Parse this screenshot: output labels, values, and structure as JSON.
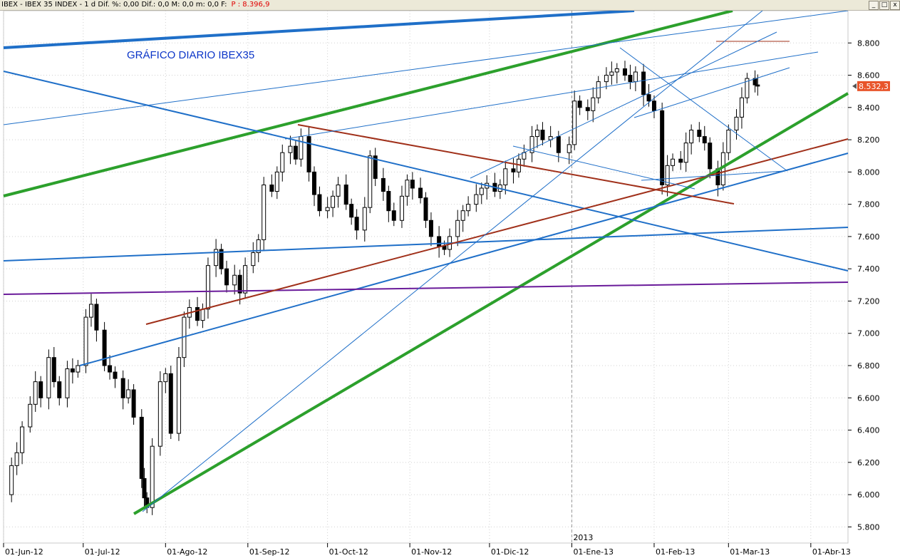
{
  "window": {
    "title": "IBEX - IBEX 35 INDEX - 1 d Dif. %: 0,00  Dif.: 0,0  M: 0,0  m: 0,0  F:",
    "price_label": "P : 8.396,9",
    "buttons": [
      "_",
      "□",
      "x"
    ]
  },
  "chart_data": {
    "type": "candlestick",
    "title": "GRÁFICO DIARIO IBEX35",
    "last_value_badge": "8.532,3",
    "year_marker": "2013",
    "ylim": [
      5700,
      9000
    ],
    "y_ticks": [
      {
        "v": 5800,
        "label": "5.800"
      },
      {
        "v": 6000,
        "label": "6.000"
      },
      {
        "v": 6200,
        "label": "6.200"
      },
      {
        "v": 6400,
        "label": "6.400"
      },
      {
        "v": 6600,
        "label": "6.600"
      },
      {
        "v": 6800,
        "label": "6.800"
      },
      {
        "v": 7000,
        "label": "7.000"
      },
      {
        "v": 7200,
        "label": "7.200"
      },
      {
        "v": 7400,
        "label": "7.400"
      },
      {
        "v": 7600,
        "label": "7.600"
      },
      {
        "v": 7800,
        "label": "7.800"
      },
      {
        "v": 8000,
        "label": "8.000"
      },
      {
        "v": 8200,
        "label": "8.200"
      },
      {
        "v": 8400,
        "label": "8.400"
      },
      {
        "v": 8600,
        "label": "8.600"
      },
      {
        "v": 8800,
        "label": "8.800"
      }
    ],
    "x_start": "2012-06-01",
    "x_end": "2013-04-15",
    "x_ticks": [
      {
        "date": "2012-06-01",
        "label": "01-Jun-12"
      },
      {
        "date": "2012-07-01",
        "label": "01-Jul-12"
      },
      {
        "date": "2012-08-01",
        "label": "01-Ago-12"
      },
      {
        "date": "2012-09-01",
        "label": "01-Sep-12"
      },
      {
        "date": "2012-10-01",
        "label": "01-Oct-12"
      },
      {
        "date": "2012-11-01",
        "label": "01-Nov-12"
      },
      {
        "date": "2012-12-01",
        "label": "01-Dic-12"
      },
      {
        "date": "2013-01-01",
        "label": "01-Ene-13"
      },
      {
        "date": "2013-02-01",
        "label": "01-Feb-13"
      },
      {
        "date": "2013-03-01",
        "label": "01-Mar-13"
      },
      {
        "date": "2013-04-01",
        "label": "01-Abr-13"
      }
    ],
    "series_close": [
      [
        "2012-06-01",
        6000
      ],
      [
        "2012-06-04",
        6180
      ],
      [
        "2012-06-06",
        6260
      ],
      [
        "2012-06-08",
        6420
      ],
      [
        "2012-06-11",
        6560
      ],
      [
        "2012-06-13",
        6700
      ],
      [
        "2012-06-15",
        6600
      ],
      [
        "2012-06-18",
        6850
      ],
      [
        "2012-06-20",
        6700
      ],
      [
        "2012-06-22",
        6600
      ],
      [
        "2012-06-25",
        6780
      ],
      [
        "2012-06-27",
        6760
      ],
      [
        "2012-06-29",
        6800
      ],
      [
        "2012-07-02",
        7100
      ],
      [
        "2012-07-04",
        7180
      ],
      [
        "2012-07-06",
        7020
      ],
      [
        "2012-07-09",
        6800
      ],
      [
        "2012-07-11",
        6760
      ],
      [
        "2012-07-13",
        6720
      ],
      [
        "2012-07-16",
        6600
      ],
      [
        "2012-07-18",
        6650
      ],
      [
        "2012-07-20",
        6480
      ],
      [
        "2012-07-23",
        6100
      ],
      [
        "2012-07-24",
        5980
      ],
      [
        "2012-07-25",
        5920
      ],
      [
        "2012-07-27",
        6300
      ],
      [
        "2012-07-30",
        6700
      ],
      [
        "2012-08-01",
        6750
      ],
      [
        "2012-08-03",
        6380
      ],
      [
        "2012-08-06",
        6850
      ],
      [
        "2012-08-08",
        7100
      ],
      [
        "2012-08-10",
        7160
      ],
      [
        "2012-08-13",
        7080
      ],
      [
        "2012-08-15",
        7150
      ],
      [
        "2012-08-17",
        7420
      ],
      [
        "2012-08-20",
        7520
      ],
      [
        "2012-08-22",
        7400
      ],
      [
        "2012-08-24",
        7300
      ],
      [
        "2012-08-27",
        7360
      ],
      [
        "2012-08-29",
        7250
      ],
      [
        "2012-08-31",
        7420
      ],
      [
        "2012-09-03",
        7500
      ],
      [
        "2012-09-05",
        7580
      ],
      [
        "2012-09-07",
        7920
      ],
      [
        "2012-09-10",
        7880
      ],
      [
        "2012-09-12",
        8000
      ],
      [
        "2012-09-14",
        8120
      ],
      [
        "2012-09-17",
        8160
      ],
      [
        "2012-09-19",
        8080
      ],
      [
        "2012-09-21",
        8220
      ],
      [
        "2012-09-24",
        8000
      ],
      [
        "2012-09-26",
        7860
      ],
      [
        "2012-09-28",
        7760
      ],
      [
        "2012-10-01",
        7780
      ],
      [
        "2012-10-03",
        7850
      ],
      [
        "2012-10-05",
        7920
      ],
      [
        "2012-10-08",
        7800
      ],
      [
        "2012-10-10",
        7720
      ],
      [
        "2012-10-12",
        7640
      ],
      [
        "2012-10-15",
        7780
      ],
      [
        "2012-10-17",
        8100
      ],
      [
        "2012-10-19",
        7960
      ],
      [
        "2012-10-22",
        7880
      ],
      [
        "2012-10-24",
        7760
      ],
      [
        "2012-10-26",
        7700
      ],
      [
        "2012-10-29",
        7850
      ],
      [
        "2012-10-31",
        7950
      ],
      [
        "2012-11-02",
        7900
      ],
      [
        "2012-11-05",
        7840
      ],
      [
        "2012-11-07",
        7700
      ],
      [
        "2012-11-09",
        7600
      ],
      [
        "2012-11-12",
        7540
      ],
      [
        "2012-11-14",
        7520
      ],
      [
        "2012-11-16",
        7600
      ],
      [
        "2012-11-19",
        7700
      ],
      [
        "2012-11-21",
        7760
      ],
      [
        "2012-11-23",
        7800
      ],
      [
        "2012-11-26",
        7860
      ],
      [
        "2012-11-28",
        7900
      ],
      [
        "2012-11-30",
        7930
      ],
      [
        "2012-12-03",
        7880
      ],
      [
        "2012-12-05",
        7920
      ],
      [
        "2012-12-07",
        8020
      ],
      [
        "2012-12-10",
        8000
      ],
      [
        "2012-12-12",
        8080
      ],
      [
        "2012-12-14",
        8120
      ],
      [
        "2012-12-17",
        8220
      ],
      [
        "2012-12-19",
        8260
      ],
      [
        "2012-12-21",
        8200
      ],
      [
        "2012-12-24",
        8220
      ],
      [
        "2012-12-27",
        8120
      ],
      [
        "2012-12-31",
        8170
      ],
      [
        "2013-01-02",
        8440
      ],
      [
        "2013-01-04",
        8400
      ],
      [
        "2013-01-07",
        8380
      ],
      [
        "2013-01-09",
        8460
      ],
      [
        "2013-01-11",
        8560
      ],
      [
        "2013-01-14",
        8600
      ],
      [
        "2013-01-16",
        8620
      ],
      [
        "2013-01-18",
        8640
      ],
      [
        "2013-01-21",
        8600
      ],
      [
        "2013-01-23",
        8560
      ],
      [
        "2013-01-25",
        8620
      ],
      [
        "2013-01-28",
        8480
      ],
      [
        "2013-01-30",
        8440
      ],
      [
        "2013-02-01",
        8380
      ],
      [
        "2013-02-04",
        7920
      ],
      [
        "2013-02-06",
        8040
      ],
      [
        "2013-02-08",
        8080
      ],
      [
        "2013-02-11",
        8060
      ],
      [
        "2013-02-13",
        8180
      ],
      [
        "2013-02-15",
        8260
      ],
      [
        "2013-02-18",
        8220
      ],
      [
        "2013-02-20",
        8180
      ],
      [
        "2013-02-22",
        8020
      ],
      [
        "2013-02-25",
        7920
      ],
      [
        "2013-02-27",
        8120
      ],
      [
        "2013-03-01",
        8260
      ],
      [
        "2013-03-04",
        8340
      ],
      [
        "2013-03-06",
        8460
      ],
      [
        "2013-03-08",
        8580
      ],
      [
        "2013-03-11",
        8540
      ],
      [
        "2013-03-12",
        8532.3
      ]
    ]
  }
}
